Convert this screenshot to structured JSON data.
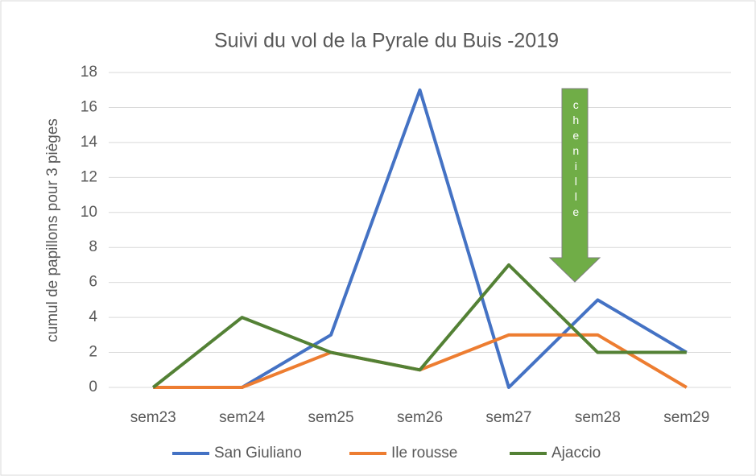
{
  "chart_data": {
    "type": "line",
    "title": "Suivi du vol de la Pyrale du Buis -2019",
    "y_label": "cumul de papillons pour 3 pièges",
    "categories": [
      "sem23",
      "sem24",
      "sem25",
      "sem26",
      "sem27",
      "sem28",
      "sem29"
    ],
    "series": [
      {
        "name": "San Giuliano",
        "color": "#4472c4",
        "values": [
          0,
          0,
          3,
          17,
          0,
          5,
          2
        ]
      },
      {
        "name": "Ile rousse",
        "color": "#ed7d31",
        "values": [
          0,
          0,
          2,
          1,
          3,
          3,
          0
        ]
      },
      {
        "name": "Ajaccio",
        "color": "#538135",
        "values": [
          0,
          4,
          2,
          1,
          7,
          2,
          2
        ]
      }
    ],
    "ylim": [
      0,
      18
    ],
    "yticks": [
      0,
      2,
      4,
      6,
      8,
      10,
      12,
      14,
      16,
      18
    ],
    "grid": true,
    "legend": "bottom",
    "annotation": {
      "text": "chenille",
      "color": "#70ad47"
    }
  }
}
